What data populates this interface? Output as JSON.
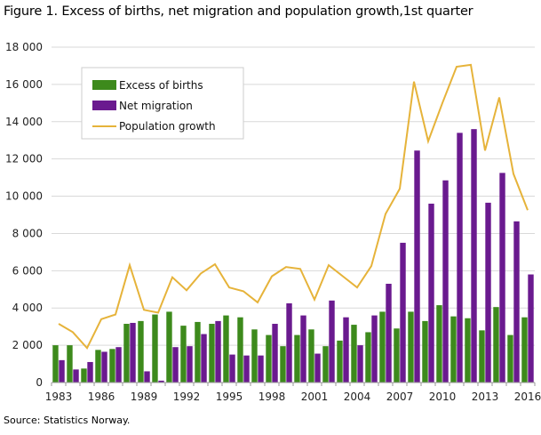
{
  "title": "Figure 1. Excess of births, net migration and population growth,1st quarter",
  "source": "Source: Statistics Norway.",
  "colors": {
    "excess_births": "#3d8a1c",
    "net_migration": "#6a1a8f",
    "population_growth": "#e6b33a",
    "grid": "#d9d9d9",
    "axis": "#999999"
  },
  "chart_data": {
    "type": "bar",
    "title": "Figure 1. Excess of births, net migration and population growth,1st quarter",
    "xlabel": "",
    "ylabel": "",
    "ylim": [
      0,
      18000
    ],
    "yticks": [
      0,
      2000,
      4000,
      6000,
      8000,
      10000,
      12000,
      14000,
      16000,
      18000
    ],
    "ytick_labels": [
      "0",
      "2 000",
      "4 000",
      "6 000",
      "8 000",
      "10 000",
      "12 000",
      "14 000",
      "16 000",
      "18 000"
    ],
    "xtick_labels": [
      "1983",
      "1986",
      "1989",
      "1992",
      "1995",
      "1998",
      "2001",
      "2004",
      "2007",
      "2010",
      "2013",
      "2016"
    ],
    "grid": true,
    "legend_position": "top-left",
    "categories": [
      1983,
      1984,
      1985,
      1986,
      1987,
      1988,
      1989,
      1990,
      1991,
      1992,
      1993,
      1994,
      1995,
      1996,
      1997,
      1998,
      1999,
      2000,
      2001,
      2002,
      2003,
      2004,
      2005,
      2006,
      2007,
      2008,
      2009,
      2010,
      2011,
      2012,
      2013,
      2014,
      2015,
      2016
    ],
    "series": [
      {
        "name": "Excess of births",
        "type": "bar",
        "values": [
          2000,
          2000,
          750,
          1750,
          1800,
          3150,
          3300,
          3650,
          3800,
          3050,
          3250,
          3150,
          3600,
          3500,
          2850,
          2550,
          1950,
          2550,
          2850,
          1950,
          2250,
          3100,
          2700,
          3800,
          2900,
          3800,
          3300,
          4150,
          3550,
          3450,
          2800,
          4050,
          2550,
          3500
        ]
      },
      {
        "name": "Net migration",
        "type": "bar",
        "values": [
          1200,
          700,
          1100,
          1650,
          1900,
          3200,
          600,
          100,
          1900,
          1950,
          2600,
          3300,
          1500,
          1450,
          1450,
          3150,
          4250,
          3600,
          1550,
          4400,
          3500,
          2000,
          3600,
          5300,
          7500,
          12450,
          9600,
          10850,
          13400,
          13600,
          9650,
          11250,
          8650,
          5800
        ]
      },
      {
        "name": "Population growth",
        "type": "line",
        "values": [
          3150,
          2700,
          1850,
          3400,
          3650,
          6300,
          3900,
          3750,
          5650,
          4950,
          5850,
          6350,
          5100,
          4900,
          4300,
          5700,
          6200,
          6100,
          4450,
          6300,
          5700,
          5100,
          6250,
          9050,
          10400,
          16150,
          12950,
          15000,
          16950,
          17050,
          12450,
          15300,
          11200,
          9250
        ]
      }
    ]
  }
}
